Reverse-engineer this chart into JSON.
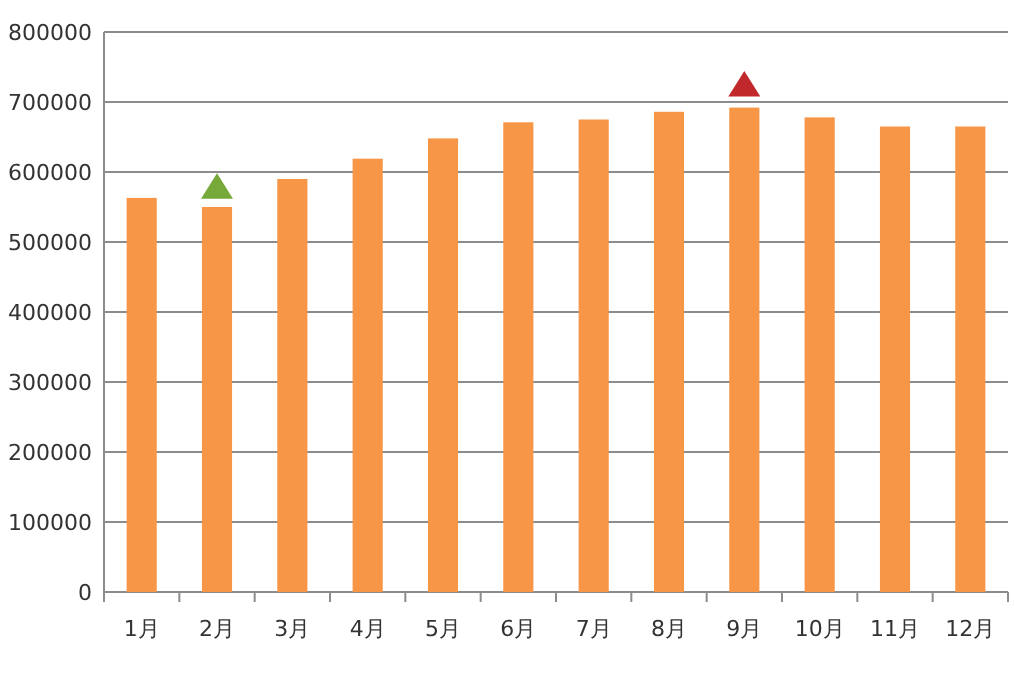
{
  "chart_data": {
    "type": "bar",
    "categories": [
      "1月",
      "2月",
      "3月",
      "4月",
      "5月",
      "6月",
      "7月",
      "8月",
      "9月",
      "10月",
      "11月",
      "12月"
    ],
    "series": [
      {
        "color": "#f79646",
        "values": [
          563000,
          550000,
          590000,
          619000,
          648000,
          671000,
          675000,
          686000,
          692000,
          678000,
          665000,
          665000
        ]
      },
      {
        "type": "scatter",
        "color": "#76a93a",
        "marker": "triangle",
        "x": [
          "2月"
        ],
        "values": [
          580000
        ]
      },
      {
        "type": "scatter",
        "color": "#c0282c",
        "marker": "triangle",
        "x": [
          "9月"
        ],
        "values": [
          726000
        ]
      }
    ],
    "ylim": [
      0,
      800000
    ],
    "yticks": [
      0,
      100000,
      200000,
      300000,
      400000,
      500000,
      600000,
      700000,
      800000
    ],
    "grid": "y"
  }
}
